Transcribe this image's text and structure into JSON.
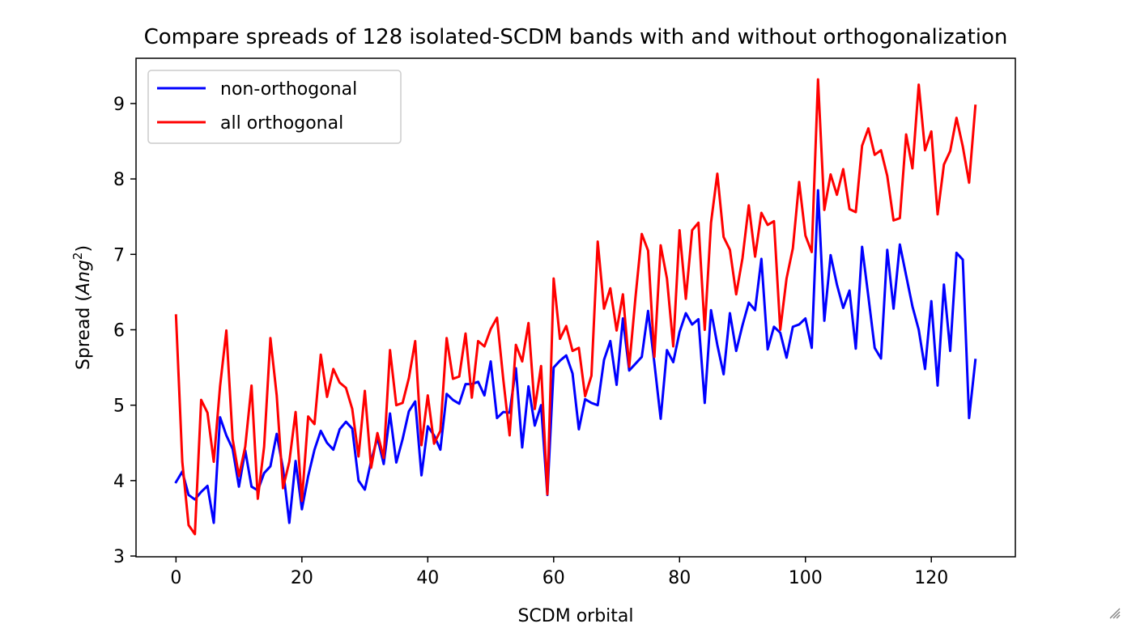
{
  "chart_data": {
    "type": "line",
    "title": "Compare spreads of 128 isolated-SCDM bands with and without orthogonalization",
    "xlabel": "SCDM orbital",
    "ylabel_prefix": "Spread (",
    "ylabel_math": "Ang",
    "ylabel_sup": "2",
    "ylabel_suffix": ")",
    "xlim": [
      -6.35,
      133.35
    ],
    "ylim": [
      2.99,
      9.6
    ],
    "xticks": [
      0,
      20,
      40,
      60,
      80,
      100,
      120
    ],
    "xtick_labels": [
      "0",
      "20",
      "40",
      "60",
      "80",
      "100",
      "120"
    ],
    "yticks": [
      3,
      4,
      5,
      6,
      7,
      8,
      9
    ],
    "ytick_labels": [
      "3",
      "4",
      "5",
      "6",
      "7",
      "8",
      "9"
    ],
    "grid": false,
    "legend_position": "top-left",
    "series": [
      {
        "name": "non-orthogonal",
        "color": "#0000ff",
        "values": [
          3.98,
          4.12,
          3.81,
          3.75,
          3.85,
          3.93,
          3.44,
          4.84,
          4.6,
          4.42,
          3.92,
          4.4,
          3.92,
          3.87,
          4.1,
          4.19,
          4.62,
          4.16,
          3.44,
          4.26,
          3.62,
          4.06,
          4.41,
          4.66,
          4.5,
          4.41,
          4.68,
          4.78,
          4.69,
          4.0,
          3.88,
          4.26,
          4.57,
          4.22,
          4.89,
          4.24,
          4.55,
          4.92,
          5.05,
          4.07,
          4.72,
          4.6,
          4.41,
          5.15,
          5.07,
          5.02,
          5.28,
          5.28,
          5.31,
          5.13,
          5.58,
          4.83,
          4.91,
          4.9,
          5.49,
          4.44,
          5.25,
          4.73,
          5.0,
          3.81,
          5.5,
          5.59,
          5.66,
          5.42,
          4.68,
          5.08,
          5.03,
          5.0,
          5.6,
          5.85,
          5.27,
          6.15,
          5.46,
          5.55,
          5.64,
          6.25,
          5.56,
          4.82,
          5.73,
          5.57,
          5.97,
          6.22,
          6.07,
          6.14,
          5.03,
          6.26,
          5.8,
          5.41,
          6.22,
          5.72,
          6.06,
          6.36,
          6.26,
          6.94,
          5.74,
          6.04,
          5.96,
          5.63,
          6.04,
          6.07,
          6.15,
          5.76,
          7.85,
          6.12,
          6.99,
          6.6,
          6.29,
          6.52,
          5.75,
          7.1,
          6.44,
          5.76,
          5.62,
          7.06,
          6.28,
          7.13,
          6.72,
          6.31,
          6.0,
          5.48,
          6.38,
          5.26,
          6.6,
          5.72,
          7.02,
          6.93,
          4.83,
          5.6
        ]
      },
      {
        "name": "all orthogonal",
        "color": "#ff0000",
        "values": [
          6.19,
          4.25,
          3.41,
          3.29,
          5.07,
          4.9,
          4.25,
          5.25,
          5.99,
          4.55,
          4.06,
          4.45,
          5.26,
          3.76,
          4.45,
          5.89,
          5.13,
          3.9,
          4.25,
          4.91,
          3.73,
          4.85,
          4.75,
          5.67,
          5.11,
          5.48,
          5.3,
          5.23,
          4.95,
          4.32,
          5.19,
          4.17,
          4.63,
          4.3,
          5.73,
          5.0,
          5.03,
          5.36,
          5.85,
          4.47,
          5.13,
          4.49,
          4.66,
          5.89,
          5.35,
          5.38,
          5.95,
          5.1,
          5.85,
          5.78,
          6.01,
          6.16,
          5.34,
          4.6,
          5.8,
          5.58,
          6.09,
          4.95,
          5.52,
          3.82,
          6.68,
          5.88,
          6.05,
          5.72,
          5.76,
          5.12,
          5.39,
          7.17,
          6.28,
          6.55,
          5.99,
          6.47,
          5.51,
          6.43,
          7.27,
          7.05,
          5.64,
          7.12,
          6.68,
          5.78,
          7.32,
          6.41,
          7.32,
          7.42,
          6.0,
          7.42,
          8.07,
          7.23,
          7.06,
          6.47,
          6.95,
          7.65,
          6.97,
          7.55,
          7.39,
          7.44,
          6.0,
          6.68,
          7.08,
          7.96,
          7.25,
          7.03,
          9.32,
          7.59,
          8.06,
          7.79,
          8.13,
          7.6,
          7.56,
          8.44,
          8.67,
          8.32,
          8.38,
          8.04,
          7.45,
          7.48,
          8.59,
          8.14,
          9.25,
          8.38,
          8.63,
          7.53,
          8.19,
          8.37,
          8.81,
          8.43,
          7.95,
          8.97
        ]
      }
    ]
  }
}
